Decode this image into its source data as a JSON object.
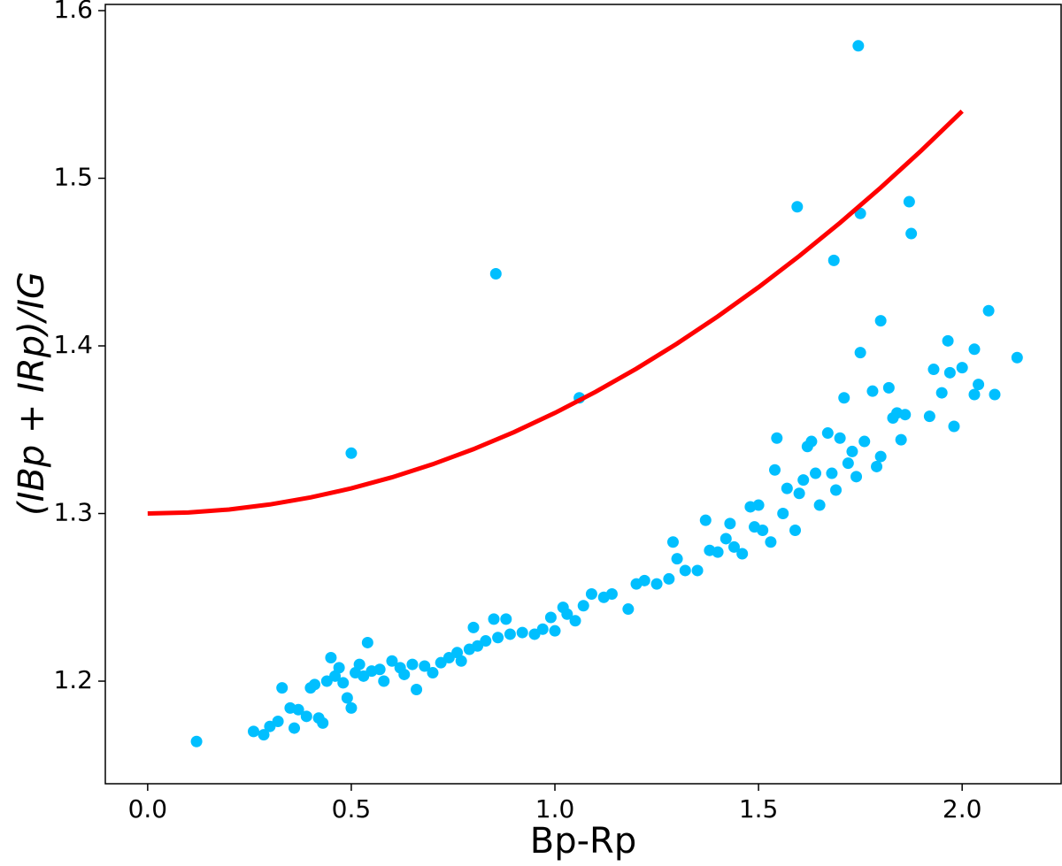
{
  "chart_data": {
    "type": "scatter",
    "xlabel": "Bp-Rp",
    "ylabel": "(IBp + IRp)/IG",
    "xlim": [
      -0.104,
      2.243
    ],
    "ylim": [
      1.1388,
      1.6037
    ],
    "xticks": [
      {
        "value": 0,
        "label": "0.0"
      },
      0.5,
      {
        "value": 1,
        "label": "1.0"
      },
      1.5,
      {
        "value": 2,
        "label": "2.0"
      }
    ],
    "yticks": [
      1.2,
      1.3,
      1.4,
      1.5,
      1.6
    ],
    "series": [
      {
        "type": "scatter",
        "color": "#00bfff",
        "x": [
          0.12,
          0.5,
          0.855,
          1.06,
          1.595,
          1.745,
          1.75,
          1.685,
          1.87,
          1.875,
          1.8,
          1.75,
          2.065,
          2.135,
          0.26,
          0.285,
          0.3,
          0.32,
          0.33,
          0.35,
          0.36,
          0.37,
          0.39,
          0.4,
          0.41,
          0.42,
          0.43,
          0.44,
          0.45,
          0.46,
          0.47,
          0.48,
          0.49,
          0.5,
          0.51,
          0.52,
          0.53,
          0.54,
          0.55,
          0.57,
          0.58,
          0.6,
          0.62,
          0.63,
          0.65,
          0.66,
          0.68,
          0.7,
          0.72,
          0.74,
          0.76,
          0.77,
          0.79,
          0.8,
          0.81,
          0.83,
          0.85,
          0.86,
          0.88,
          0.89,
          0.92,
          0.95,
          0.97,
          0.99,
          1.0,
          1.02,
          1.03,
          1.05,
          1.07,
          1.09,
          1.12,
          1.14,
          1.18,
          1.2,
          1.22,
          1.25,
          1.28,
          1.29,
          1.3,
          1.32,
          1.35,
          1.37,
          1.38,
          1.4,
          1.42,
          1.43,
          1.44,
          1.46,
          1.48,
          1.49,
          1.5,
          1.51,
          1.53,
          1.54,
          1.545,
          1.56,
          1.57,
          1.59,
          1.6,
          1.61,
          1.62,
          1.63,
          1.64,
          1.65,
          1.67,
          1.68,
          1.69,
          1.7,
          1.71,
          1.72,
          1.73,
          1.74,
          1.76,
          1.78,
          1.79,
          1.8,
          1.82,
          1.83,
          1.84,
          1.85,
          1.86,
          1.92,
          1.93,
          1.95,
          1.97,
          1.98,
          2.0,
          2.03,
          2.04,
          2.03,
          2.08,
          1.965
        ],
        "values": [
          1.164,
          1.336,
          1.443,
          1.369,
          1.483,
          1.579,
          1.479,
          1.451,
          1.486,
          1.467,
          1.415,
          1.396,
          1.421,
          1.393,
          1.17,
          1.168,
          1.173,
          1.176,
          1.196,
          1.184,
          1.172,
          1.183,
          1.179,
          1.196,
          1.198,
          1.178,
          1.175,
          1.2,
          1.214,
          1.203,
          1.208,
          1.199,
          1.19,
          1.184,
          1.205,
          1.21,
          1.203,
          1.223,
          1.206,
          1.207,
          1.2,
          1.212,
          1.208,
          1.204,
          1.21,
          1.195,
          1.209,
          1.205,
          1.211,
          1.214,
          1.217,
          1.212,
          1.219,
          1.232,
          1.221,
          1.224,
          1.237,
          1.226,
          1.237,
          1.228,
          1.229,
          1.228,
          1.231,
          1.238,
          1.23,
          1.244,
          1.24,
          1.236,
          1.245,
          1.252,
          1.25,
          1.252,
          1.243,
          1.258,
          1.26,
          1.258,
          1.261,
          1.283,
          1.273,
          1.266,
          1.266,
          1.296,
          1.278,
          1.277,
          1.285,
          1.294,
          1.28,
          1.276,
          1.304,
          1.292,
          1.305,
          1.29,
          1.283,
          1.326,
          1.345,
          1.3,
          1.315,
          1.29,
          1.312,
          1.32,
          1.34,
          1.343,
          1.324,
          1.305,
          1.348,
          1.324,
          1.314,
          1.345,
          1.369,
          1.33,
          1.337,
          1.322,
          1.343,
          1.373,
          1.328,
          1.334,
          1.375,
          1.357,
          1.36,
          1.344,
          1.359,
          1.358,
          1.386,
          1.372,
          1.384,
          1.352,
          1.387,
          1.398,
          1.377,
          1.371,
          1.371,
          1.403
        ]
      },
      {
        "type": "line",
        "color": "#ff0000",
        "x": [
          0,
          0.1,
          0.2,
          0.3,
          0.4,
          0.5,
          0.6,
          0.7,
          0.8,
          0.9,
          1.0,
          1.1,
          1.2,
          1.3,
          1.4,
          1.5,
          1.6,
          1.7,
          1.8,
          1.9,
          2.0
        ],
        "values": [
          1.3,
          1.3006,
          1.3024,
          1.3054,
          1.3096,
          1.315,
          1.3216,
          1.3294,
          1.3384,
          1.3486,
          1.36,
          1.3726,
          1.3864,
          1.4014,
          1.4176,
          1.435,
          1.4536,
          1.4734,
          1.4944,
          1.5166,
          1.54
        ]
      }
    ]
  }
}
